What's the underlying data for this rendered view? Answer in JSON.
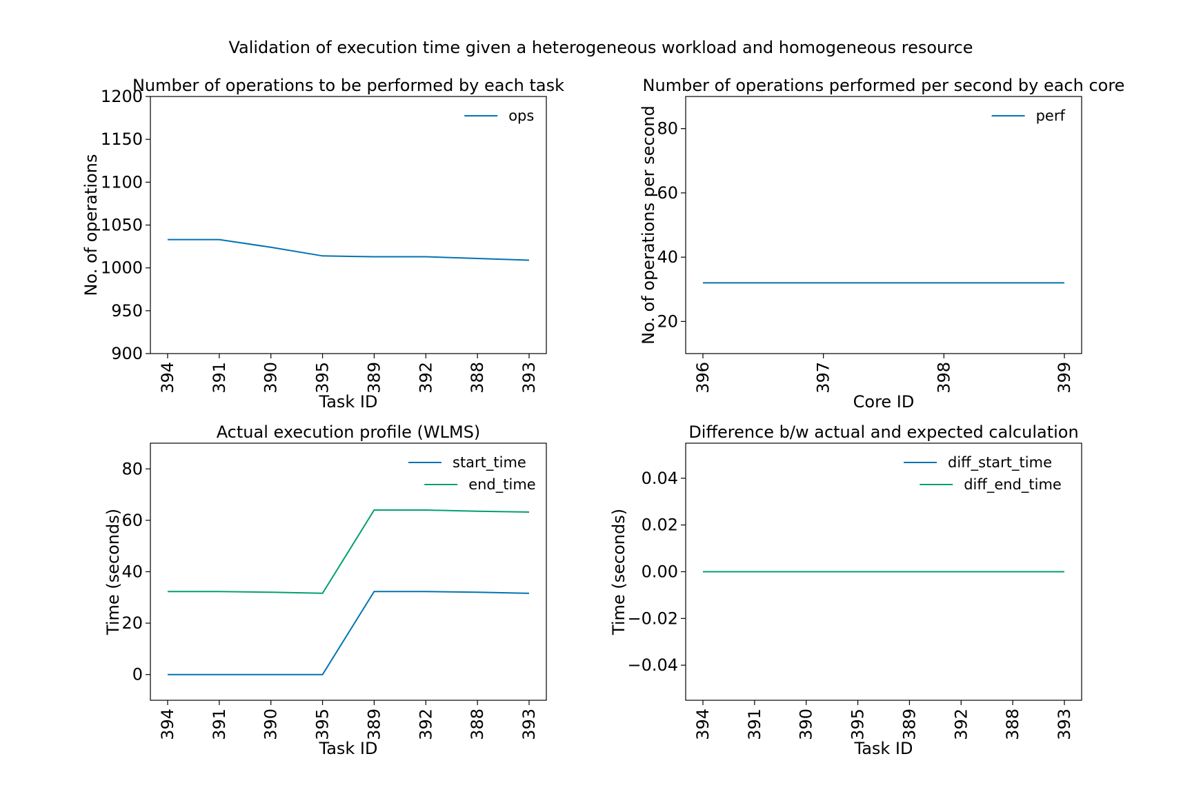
{
  "figure": {
    "suptitle": "Validation of execution time given a heterogeneous workload and homogeneous resource"
  },
  "colors": {
    "blue": "#0072b2",
    "green": "#009e73"
  },
  "chart_data": [
    {
      "type": "line",
      "title": "Number of operations to be performed by each task",
      "xlabel": "Task ID",
      "ylabel": "No. of operations",
      "categories": [
        "394",
        "391",
        "390",
        "395",
        "389",
        "392",
        "388",
        "393"
      ],
      "ylim": [
        900,
        1200
      ],
      "yticks": [
        900,
        950,
        1000,
        1050,
        1100,
        1150,
        1200
      ],
      "ytick_labels": [
        "900",
        "950",
        "1000",
        "1050",
        "1100",
        "1150",
        "1200"
      ],
      "legend": "top-right",
      "grid": false,
      "series": [
        {
          "name": "ops",
          "color": "#0072b2",
          "values": [
            1033,
            1033,
            1024,
            1014,
            1013,
            1013,
            1011,
            1009
          ]
        }
      ]
    },
    {
      "type": "line",
      "title": "Number of operations performed per second by each core",
      "xlabel": "Core ID",
      "ylabel": "No. of operations per second",
      "categories": [
        "396",
        "397",
        "398",
        "399"
      ],
      "ylim": [
        10,
        90
      ],
      "yticks": [
        20,
        40,
        60,
        80
      ],
      "ytick_labels": [
        "20",
        "40",
        "60",
        "80"
      ],
      "legend": "top-right",
      "grid": false,
      "series": [
        {
          "name": "perf",
          "color": "#0072b2",
          "values": [
            32,
            32,
            32,
            32
          ]
        }
      ]
    },
    {
      "type": "line",
      "title": "Actual execution profile (WLMS)",
      "xlabel": "Task ID",
      "ylabel": "Time (seconds)",
      "categories": [
        "394",
        "391",
        "390",
        "395",
        "389",
        "392",
        "388",
        "393"
      ],
      "ylim": [
        -10,
        90
      ],
      "yticks": [
        0,
        20,
        40,
        60,
        80
      ],
      "ytick_labels": [
        "0",
        "20",
        "40",
        "60",
        "80"
      ],
      "legend": "top-right",
      "grid": false,
      "series": [
        {
          "name": "start_time",
          "color": "#0072b2",
          "values": [
            0,
            0,
            0,
            0,
            32.3,
            32.3,
            32,
            31.6
          ]
        },
        {
          "name": "end_time",
          "color": "#009e73",
          "values": [
            32.3,
            32.3,
            32,
            31.6,
            64.0,
            64.0,
            63.5,
            63.2
          ]
        }
      ]
    },
    {
      "type": "line",
      "title": "Difference b/w actual and expected calculation",
      "xlabel": "Task ID",
      "ylabel": "Time (seconds)",
      "categories": [
        "394",
        "391",
        "390",
        "395",
        "389",
        "392",
        "388",
        "393"
      ],
      "ylim": [
        -0.055,
        0.055
      ],
      "yticks": [
        -0.04,
        -0.02,
        0.0,
        0.02,
        0.04
      ],
      "ytick_labels": [
        "−0.04",
        "−0.02",
        "0.00",
        "0.02",
        "0.04"
      ],
      "legend": "top-right",
      "grid": false,
      "series": [
        {
          "name": "diff_start_time",
          "color": "#0072b2",
          "values": [
            0,
            0,
            0,
            0,
            0,
            0,
            0,
            0
          ]
        },
        {
          "name": "diff_end_time",
          "color": "#009e73",
          "values": [
            0,
            0,
            0,
            0,
            0,
            0,
            0,
            0
          ]
        }
      ]
    }
  ]
}
